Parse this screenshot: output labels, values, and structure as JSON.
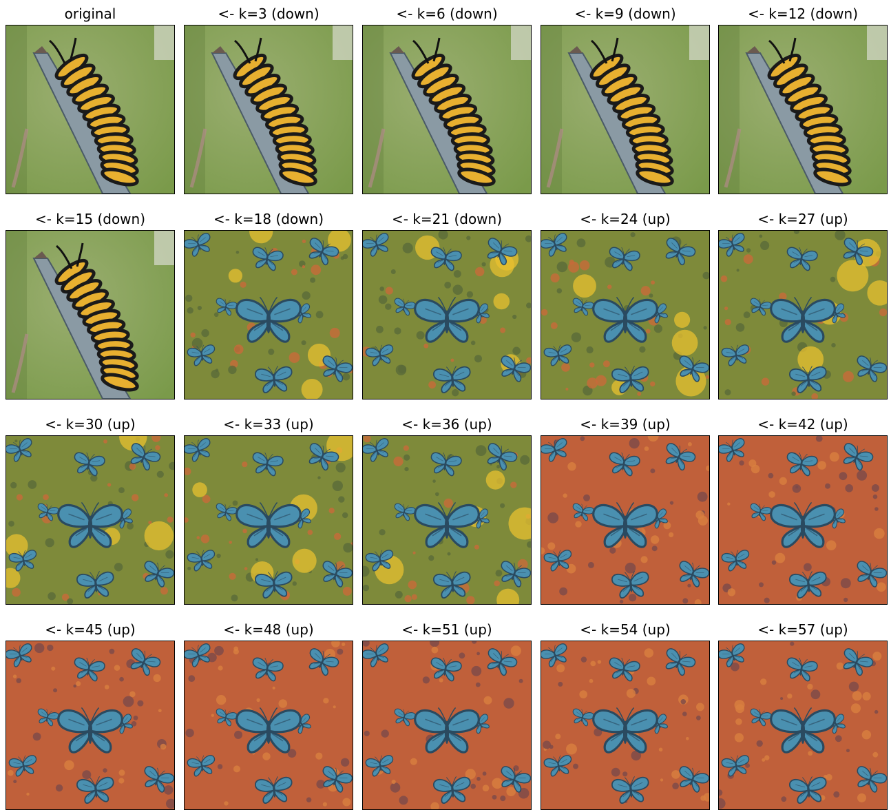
{
  "panels": [
    {
      "title": "original",
      "scene": "caterpillar"
    },
    {
      "title": "<- k=3 (down)",
      "scene": "caterpillar"
    },
    {
      "title": "<- k=6 (down)",
      "scene": "caterpillar"
    },
    {
      "title": "<- k=9 (down)",
      "scene": "caterpillar"
    },
    {
      "title": "<- k=12 (down)",
      "scene": "caterpillar"
    },
    {
      "title": "<- k=15 (down)",
      "scene": "caterpillar"
    },
    {
      "title": "<- k=18 (down)",
      "scene": "butterfly-green"
    },
    {
      "title": "<- k=21 (down)",
      "scene": "butterfly-green"
    },
    {
      "title": "<- k=24 (up)",
      "scene": "butterfly-green"
    },
    {
      "title": "<- k=27 (up)",
      "scene": "butterfly-green"
    },
    {
      "title": "<- k=30 (up)",
      "scene": "butterfly-green"
    },
    {
      "title": "<- k=33 (up)",
      "scene": "butterfly-green"
    },
    {
      "title": "<- k=36 (up)",
      "scene": "butterfly-green"
    },
    {
      "title": "<- k=39 (up)",
      "scene": "butterfly-orange"
    },
    {
      "title": "<- k=42 (up)",
      "scene": "butterfly-orange"
    },
    {
      "title": "<- k=45 (up)",
      "scene": "butterfly-orange"
    },
    {
      "title": "<- k=48 (up)",
      "scene": "butterfly-orange"
    },
    {
      "title": "<- k=51 (up)",
      "scene": "butterfly-orange"
    },
    {
      "title": "<- k=54 (up)",
      "scene": "butterfly-orange"
    },
    {
      "title": "<- k=57 (up)",
      "scene": "butterfly-orange"
    }
  ],
  "colors": {
    "caterpillar_bg": "#7a9a4a",
    "caterpillar_body": "#e8b030",
    "caterpillar_stripe": "#1a1a1a",
    "branch": "#8a9aa4",
    "green_bg": "#7e8a3a",
    "orange_bg": "#c0603a",
    "butterfly": "#4a90b0",
    "butterfly_dark": "#2a4a60",
    "flower_yellow": "#e8c030"
  }
}
